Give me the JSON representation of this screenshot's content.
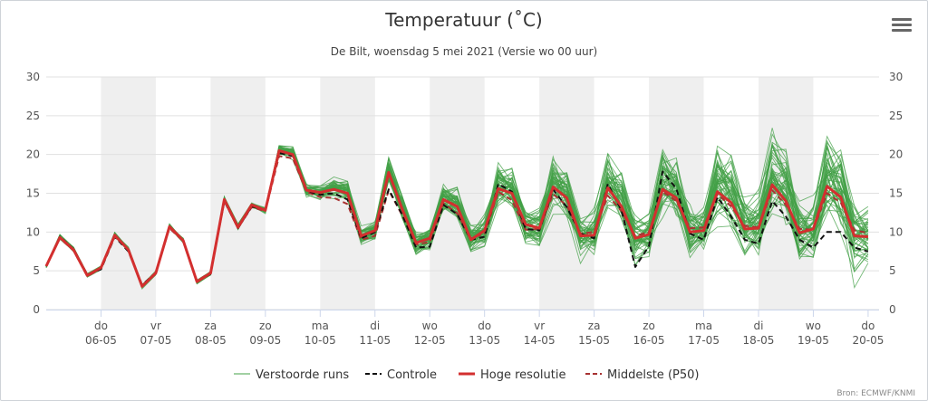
{
  "chart_data": {
    "type": "line",
    "title": "Temperatuur (˚C)",
    "subtitle": "De Bilt, woensdag 5 mei 2021 (Versie wo 00 uur)",
    "y_ticks": [
      0,
      5,
      10,
      15,
      20,
      25,
      30
    ],
    "ylim": [
      0,
      30
    ],
    "x_start_day": 5,
    "x_end_day": 20.2,
    "shaded_day_bands": [
      [
        6,
        7
      ],
      [
        8,
        9
      ],
      [
        10,
        11
      ],
      [
        12,
        13
      ],
      [
        14,
        15
      ],
      [
        16,
        17
      ],
      [
        18,
        19
      ]
    ],
    "x_ticks": [
      {
        "day": 6,
        "weekday": "do",
        "date": "06-05"
      },
      {
        "day": 7,
        "weekday": "vr",
        "date": "07-05"
      },
      {
        "day": 8,
        "weekday": "za",
        "date": "08-05"
      },
      {
        "day": 9,
        "weekday": "zo",
        "date": "09-05"
      },
      {
        "day": 10,
        "weekday": "ma",
        "date": "10-05"
      },
      {
        "day": 11,
        "weekday": "di",
        "date": "11-05"
      },
      {
        "day": 12,
        "weekday": "wo",
        "date": "12-05"
      },
      {
        "day": 13,
        "weekday": "do",
        "date": "13-05"
      },
      {
        "day": 14,
        "weekday": "vr",
        "date": "14-05"
      },
      {
        "day": 15,
        "weekday": "za",
        "date": "15-05"
      },
      {
        "day": 16,
        "weekday": "zo",
        "date": "16-05"
      },
      {
        "day": 17,
        "weekday": "ma",
        "date": "17-05"
      },
      {
        "day": 18,
        "weekday": "di",
        "date": "18-05"
      },
      {
        "day": 19,
        "weekday": "wo",
        "date": "19-05"
      },
      {
        "day": 20,
        "weekday": "do",
        "date": "20-05"
      }
    ],
    "x": [
      5.0,
      5.25,
      5.5,
      5.75,
      6.0,
      6.25,
      6.5,
      6.75,
      7.0,
      7.25,
      7.5,
      7.75,
      8.0,
      8.25,
      8.5,
      8.75,
      9.0,
      9.25,
      9.5,
      9.75,
      10.0,
      10.25,
      10.5,
      10.75,
      11.0,
      11.25,
      11.5,
      11.75,
      12.0,
      12.25,
      12.5,
      12.75,
      13.0,
      13.25,
      13.5,
      13.75,
      14.0,
      14.25,
      14.5,
      14.75,
      15.0,
      15.25,
      15.5,
      15.75,
      16.0,
      16.25,
      16.5,
      16.75,
      17.0,
      17.25,
      17.5,
      17.75,
      18.0,
      18.25,
      18.5,
      18.75,
      19.0,
      19.25,
      19.5,
      19.75,
      20.0
    ],
    "series": [
      {
        "name": "Hoge resolutie",
        "color": "#d32f2f",
        "dash": "solid",
        "values": [
          5.6,
          9.3,
          7.7,
          4.4,
          5.4,
          9.6,
          7.7,
          3.0,
          4.7,
          10.7,
          8.9,
          3.6,
          4.7,
          14.2,
          10.6,
          13.5,
          12.8,
          20.5,
          20.0,
          15.4,
          15.1,
          15.5,
          15.0,
          9.5,
          10.2,
          17.7,
          12.9,
          8.6,
          9.2,
          14.2,
          13.3,
          9.0,
          10.2,
          15.6,
          15.0,
          11.0,
          10.5,
          15.8,
          14.4,
          9.5,
          9.6,
          15.7,
          13.3,
          9.2,
          9.7,
          15.5,
          14.4,
          10.0,
          10.2,
          15.2,
          13.8,
          10.4,
          10.5,
          16.1,
          14.0,
          9.9,
          10.4,
          15.9,
          14.5,
          9.5,
          9.4
        ]
      },
      {
        "name": "Controle",
        "color": "#111111",
        "dash": "6,4",
        "values": [
          5.6,
          9.4,
          7.8,
          4.5,
          5.2,
          9.4,
          7.5,
          3.2,
          4.7,
          10.7,
          8.8,
          3.6,
          4.6,
          14.0,
          10.5,
          13.3,
          12.9,
          20.2,
          19.8,
          15.3,
          14.8,
          15.0,
          14.2,
          9.2,
          10.0,
          15.5,
          12.2,
          8.0,
          8.1,
          13.5,
          12.3,
          9.0,
          9.4,
          16.2,
          15.2,
          10.4,
          10.2,
          15.5,
          13.2,
          9.8,
          9.2,
          16.2,
          12.8,
          5.5,
          8.2,
          17.8,
          15.6,
          9.8,
          9.0,
          14.5,
          12.0,
          9.0,
          8.5,
          14.0,
          12.0,
          9.0,
          8.0,
          10.0,
          10.0,
          8.0,
          7.5
        ]
      },
      {
        "name": "Middelste (P50)",
        "color": "#a83232",
        "dash": "6,4",
        "values": [
          5.6,
          9.2,
          7.6,
          4.3,
          5.3,
          9.4,
          7.7,
          3.1,
          4.8,
          10.5,
          8.8,
          3.7,
          4.8,
          14.0,
          10.5,
          13.2,
          12.7,
          19.8,
          19.5,
          15.2,
          14.5,
          14.4,
          13.6,
          9.0,
          9.5,
          15.4,
          12.1,
          8.4,
          8.7,
          13.7,
          12.4,
          9.2,
          9.8,
          15.2,
          14.1,
          10.3,
          10.4,
          14.9,
          13.4,
          9.8,
          10.0,
          14.7,
          12.7,
          9.5,
          10.0,
          15.2,
          14.0,
          10.5,
          10.6,
          14.9,
          13.3,
          10.8,
          10.6,
          15.4,
          13.5,
          10.4,
          10.3,
          15.0,
          13.8,
          10.2,
          9.9
        ]
      }
    ],
    "legend": [
      {
        "key": "ens",
        "label": "Verstoorde runs",
        "color": "#43a047",
        "dash": "solid",
        "width": 1
      },
      {
        "key": "ctrl",
        "label": "Controle",
        "color": "#111111",
        "dash": "6,4",
        "width": 2
      },
      {
        "key": "hres",
        "label": "Hoge resolutie",
        "color": "#d32f2f",
        "dash": "solid",
        "width": 3
      },
      {
        "key": "p50",
        "label": "Middelste (P50)",
        "color": "#a83232",
        "dash": "6,4",
        "width": 2
      }
    ],
    "ensemble_color": "#43a047",
    "grid": true,
    "legend_position": "bottom-center"
  },
  "toolbar": {
    "menu_icon": "hamburger-menu-icon"
  },
  "credits": "Bron: ECMWF/KNMI"
}
